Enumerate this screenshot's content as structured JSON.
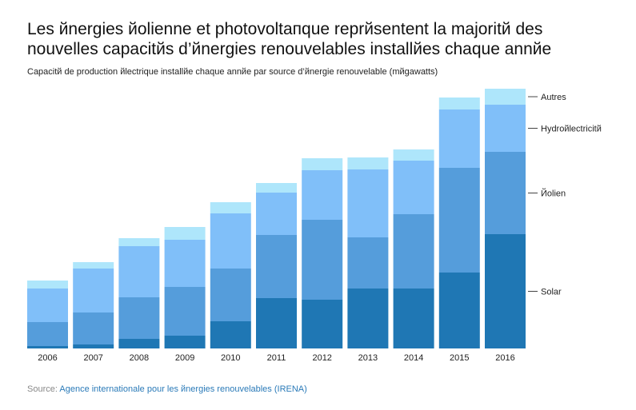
{
  "chart_data": {
    "type": "bar",
    "stacked": true,
    "title": "Les йnergies йolienne et photovoltaпque reprйsentent la majoritй des nouvelles capacitйs d’йnergies renouvelables installйes chaque annйe",
    "subtitle": "Capacitй de production йlectrique installйe chaque annйe par source d’йnergie renouvelable (mйgawatts)",
    "categories": [
      "2006",
      "2007",
      "2008",
      "2009",
      "2010",
      "2011",
      "2012",
      "2013",
      "2014",
      "2015",
      "2016"
    ],
    "series": [
      {
        "name": "Solar",
        "color": "#1f77b4",
        "values": [
          1.5,
          2.5,
          6,
          8,
          17,
          31.5,
          30.5,
          37.5,
          37.5,
          47.5,
          71.5
        ]
      },
      {
        "name": "Йolien",
        "color": "#559ddb",
        "values": [
          15,
          20,
          26,
          30.5,
          33,
          39.5,
          50,
          32,
          46.5,
          65.5,
          51.5
        ]
      },
      {
        "name": "Hydroйlectricitй",
        "color": "#80bff9",
        "values": [
          21,
          27.5,
          32,
          29.5,
          34.5,
          26.5,
          31,
          42.5,
          33.5,
          36.5,
          29.5
        ]
      },
      {
        "name": "Autres",
        "color": "#aee6fb",
        "values": [
          5,
          4,
          5,
          8,
          7,
          6,
          7.5,
          7.5,
          7,
          7.5,
          10
        ]
      }
    ],
    "legend_placement": "right",
    "grid": false
  },
  "source": {
    "label": "Source:",
    "link": "Agence internationale pour les йnergies renouvelables (IRENA)"
  }
}
